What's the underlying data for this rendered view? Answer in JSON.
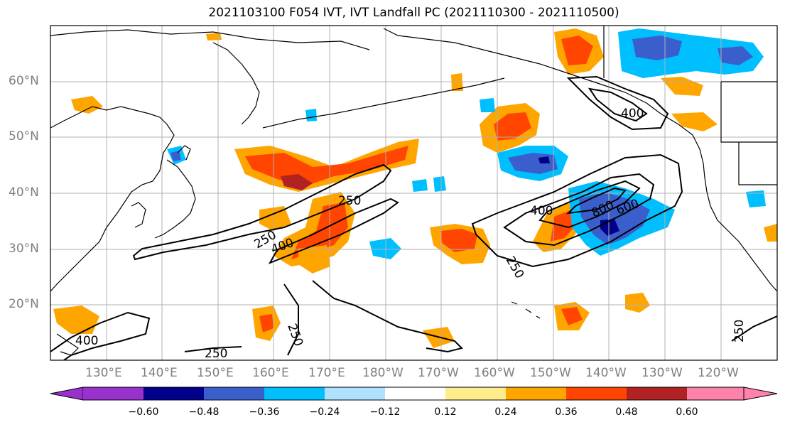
{
  "title": "2021103100 F054 IVT, IVT Landfall PC (2021110300 - 2021110500)",
  "lat_labels": [
    "60°N",
    "50°N",
    "40°N",
    "30°N",
    "20°N"
  ],
  "lon_labels": [
    "130°E",
    "140°E",
    "150°E",
    "160°E",
    "170°E",
    "180°W",
    "170°W",
    "160°W",
    "150°W",
    "140°W",
    "130°W",
    "120°W"
  ],
  "contour_labels": [
    "400",
    "250",
    "250",
    "400",
    "400",
    "800",
    "600",
    "250",
    "250",
    "400",
    "250",
    "250"
  ],
  "colorbar": {
    "ticks": [
      "−0.60",
      "−0.48",
      "−0.36",
      "−0.24",
      "−0.12",
      "0.12",
      "0.24",
      "0.36",
      "0.48",
      "0.60"
    ],
    "colors": [
      "#9932cc",
      "#00008b",
      "#3a5fcd",
      "#00bfff",
      "#b0e2ff",
      "#ffffff",
      "#ffec8b",
      "#ffa500",
      "#ff4500",
      "#b22222",
      "#ff82ab"
    ]
  },
  "colors": {
    "coast": "#000000",
    "grid": "#b0b0b0",
    "ivt_contour": "#000000"
  }
}
